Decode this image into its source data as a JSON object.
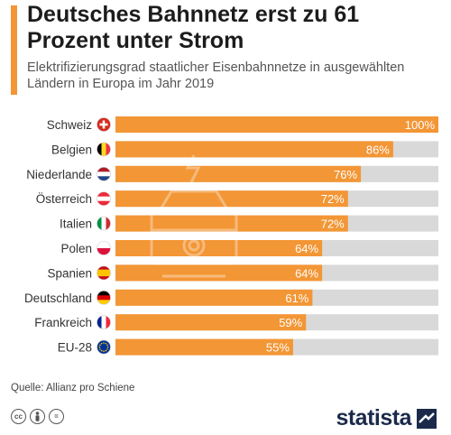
{
  "header": {
    "title": "Deutsches Bahnnetz erst zu 61 Prozent unter Strom",
    "subtitle": "Elektrifizierungsgrad staatlicher Eisenbahnnetze in ausgewählten Ländern in Europa im Jahr 2019"
  },
  "colors": {
    "accent": "#f39635",
    "bar": "#f39635",
    "track": "#d9d9d9",
    "brand": "#1b2a4a"
  },
  "chart_data": {
    "type": "bar",
    "orientation": "horizontal",
    "categories": [
      "Schweiz",
      "Belgien",
      "Niederlande",
      "Österreich",
      "Italien",
      "Polen",
      "Spanien",
      "Deutschland",
      "Frankreich",
      "EU-28"
    ],
    "values": [
      100,
      86,
      76,
      72,
      72,
      64,
      64,
      61,
      59,
      55
    ],
    "value_labels": [
      "100%",
      "86%",
      "76%",
      "72%",
      "72%",
      "64%",
      "64%",
      "61%",
      "59%",
      "55%"
    ],
    "flags": [
      "flag-switzerland",
      "flag-belgium",
      "flag-netherlands",
      "flag-austria",
      "flag-italy",
      "flag-poland",
      "flag-spain",
      "flag-germany",
      "flag-france",
      "flag-eu"
    ],
    "xlim": [
      0,
      100
    ],
    "grid": false,
    "legend": "none"
  },
  "footer": {
    "source": "Quelle: Allianz pro Schiene",
    "license_icons": [
      "cc-icon",
      "person-icon",
      "equals-icon"
    ],
    "license_labels": [
      "cc",
      "",
      "="
    ],
    "brand": "statista",
    "brand_icon": "statista-logo-icon"
  }
}
